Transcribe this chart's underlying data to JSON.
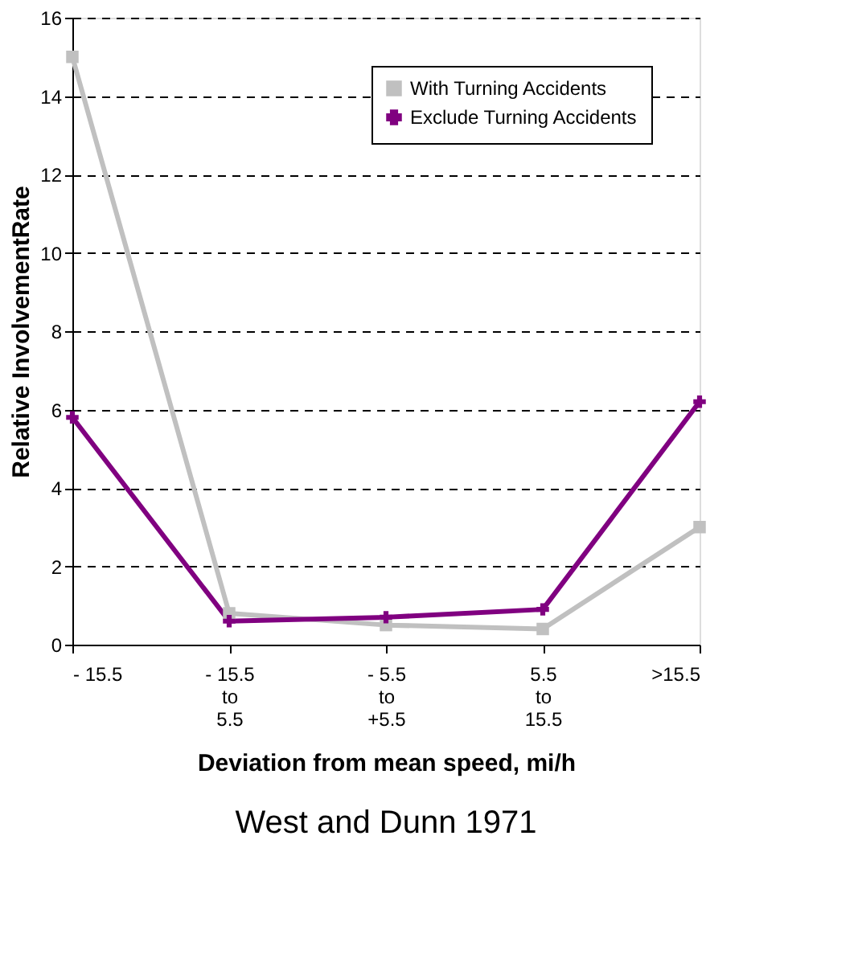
{
  "chart_data": {
    "type": "line",
    "xlabel": "Deviation from mean speed, mi/h",
    "ylabel": "Relative InvolvementRate",
    "categories": [
      "- 15.5",
      "- 15.5\nto\n5.5",
      "- 5.5\nto\n+5.5",
      "5.5\nto\n15.5",
      ">15.5"
    ],
    "series": [
      {
        "name": "With Turning Accidents",
        "color": "#c0c0c0",
        "marker": "square",
        "values": [
          15,
          0.8,
          0.5,
          0.4,
          3.0
        ]
      },
      {
        "name": "Exclude Turning Accidents",
        "color": "#800080",
        "marker": "cross",
        "values": [
          5.8,
          0.6,
          0.7,
          0.9,
          6.2
        ]
      }
    ],
    "ylim": [
      0,
      16
    ],
    "yticks": [
      0,
      2,
      4,
      6,
      8,
      10,
      12,
      14,
      16
    ],
    "grid": "y",
    "legend": "top right",
    "annotations": [
      "West and Dunn 1971"
    ]
  }
}
